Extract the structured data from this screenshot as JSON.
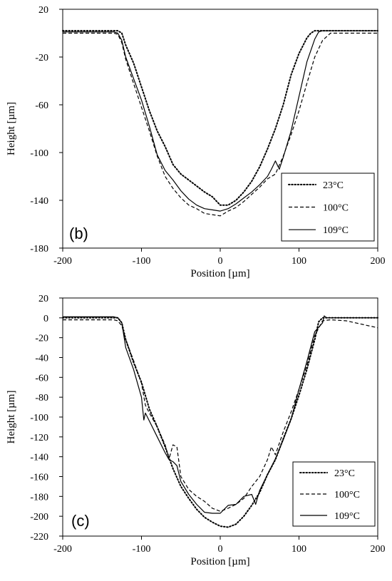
{
  "chart_data": [
    {
      "type": "line",
      "panel_label": "(b)",
      "xlabel": "Position [µm]",
      "ylabel": "Height [µm]",
      "xlim": [
        -200,
        200
      ],
      "ylim": [
        -180,
        20
      ],
      "xticks": [
        -200,
        -100,
        0,
        100,
        200
      ],
      "yticks": [
        20,
        -20,
        -60,
        -100,
        -140,
        -180
      ],
      "grid": false,
      "legend_position": "bottom-right",
      "series": [
        {
          "name": "23°C",
          "style": "dotted",
          "x": [
            -200,
            -135,
            -130,
            -125,
            -120,
            -110,
            -100,
            -90,
            -80,
            -70,
            -60,
            -50,
            -40,
            -30,
            -20,
            -10,
            0,
            10,
            20,
            30,
            40,
            50,
            60,
            70,
            80,
            90,
            100,
            110,
            115,
            120,
            125,
            130,
            140,
            200
          ],
          "y": [
            2,
            2,
            2,
            0,
            -10,
            -25,
            -45,
            -65,
            -82,
            -95,
            -110,
            -118,
            -123,
            -128,
            -133,
            -137,
            -144,
            -144,
            -140,
            -133,
            -124,
            -112,
            -97,
            -80,
            -60,
            -35,
            -17,
            -4,
            0,
            2,
            2,
            2,
            2,
            2
          ]
        },
        {
          "name": "100°C",
          "style": "dashed",
          "x": [
            -200,
            -135,
            -130,
            -125,
            -120,
            -110,
            -100,
            -90,
            -80,
            -70,
            -60,
            -50,
            -40,
            -30,
            -20,
            -10,
            0,
            10,
            20,
            30,
            40,
            50,
            60,
            70,
            80,
            90,
            100,
            110,
            120,
            130,
            140,
            200
          ],
          "y": [
            0,
            0,
            -1,
            -8,
            -22,
            -42,
            -62,
            -82,
            -103,
            -120,
            -130,
            -138,
            -144,
            -147,
            -151,
            -152,
            -153,
            -149,
            -146,
            -141,
            -135,
            -129,
            -122,
            -118,
            -103,
            -85,
            -65,
            -42,
            -20,
            -6,
            0,
            0
          ]
        },
        {
          "name": "109°C",
          "style": "solid",
          "x": [
            -200,
            -135,
            -130,
            -125,
            -120,
            -110,
            -100,
            -90,
            -80,
            -70,
            -60,
            -50,
            -40,
            -30,
            -20,
            -10,
            0,
            10,
            20,
            30,
            40,
            50,
            60,
            65,
            70,
            75,
            80,
            90,
            100,
            110,
            120,
            125,
            130,
            140,
            200
          ],
          "y": [
            1,
            1,
            0,
            -6,
            -20,
            -38,
            -56,
            -78,
            -102,
            -115,
            -123,
            -132,
            -139,
            -144,
            -147,
            -148,
            -149,
            -147,
            -143,
            -138,
            -133,
            -127,
            -120,
            -114,
            -107,
            -114,
            -104,
            -82,
            -53,
            -24,
            -5,
            1,
            2,
            2,
            2
          ]
        }
      ]
    },
    {
      "type": "line",
      "panel_label": "(c)",
      "xlabel": "Position [µm]",
      "ylabel": "Height [µm]",
      "xlim": [
        -200,
        200
      ],
      "ylim": [
        -220,
        20
      ],
      "xticks": [
        -200,
        -100,
        0,
        100,
        200
      ],
      "yticks": [
        20,
        0,
        -20,
        -40,
        -60,
        -80,
        -100,
        -120,
        -140,
        -160,
        -180,
        -200,
        -220
      ],
      "grid": false,
      "legend_position": "bottom-right",
      "series": [
        {
          "name": "23°C",
          "style": "dotted",
          "x": [
            -200,
            -135,
            -130,
            -125,
            -120,
            -110,
            -100,
            -90,
            -80,
            -70,
            -60,
            -50,
            -40,
            -30,
            -20,
            -10,
            0,
            10,
            20,
            30,
            40,
            50,
            60,
            70,
            80,
            90,
            100,
            110,
            120,
            125,
            130,
            200
          ],
          "y": [
            0,
            0,
            0,
            -5,
            -22,
            -45,
            -65,
            -92,
            -110,
            -130,
            -152,
            -170,
            -182,
            -193,
            -201,
            -206,
            -210,
            -211,
            -208,
            -200,
            -189,
            -176,
            -158,
            -143,
            -122,
            -102,
            -78,
            -52,
            -22,
            -4,
            0,
            0
          ]
        },
        {
          "name": "100°C",
          "style": "dashed",
          "x": [
            -200,
            -135,
            -130,
            -125,
            -120,
            -110,
            -100,
            -95,
            -90,
            -80,
            -70,
            -65,
            -60,
            -55,
            -50,
            -40,
            -30,
            -20,
            -10,
            0,
            10,
            20,
            30,
            40,
            50,
            60,
            65,
            70,
            80,
            90,
            100,
            110,
            120,
            130,
            140,
            160,
            200
          ],
          "y": [
            -2,
            -2,
            -3,
            -8,
            -22,
            -43,
            -66,
            -88,
            -96,
            -110,
            -128,
            -142,
            -128,
            -130,
            -160,
            -173,
            -180,
            -185,
            -192,
            -195,
            -192,
            -188,
            -182,
            -170,
            -160,
            -143,
            -130,
            -138,
            -115,
            -95,
            -72,
            -48,
            -18,
            -3,
            -2,
            -3,
            -10
          ]
        },
        {
          "name": "109°C",
          "style": "solid",
          "x": [
            -200,
            -135,
            -130,
            -125,
            -120,
            -110,
            -100,
            -97,
            -95,
            -90,
            -80,
            -70,
            -65,
            -60,
            -55,
            -50,
            -40,
            -30,
            -20,
            -10,
            0,
            5,
            10,
            20,
            30,
            40,
            45,
            50,
            60,
            70,
            80,
            90,
            100,
            110,
            120,
            130,
            132,
            135,
            140,
            200
          ],
          "y": [
            1,
            1,
            0,
            -5,
            -30,
            -52,
            -80,
            -103,
            -96,
            -104,
            -120,
            -136,
            -143,
            -145,
            -149,
            -165,
            -178,
            -188,
            -196,
            -197,
            -197,
            -193,
            -189,
            -188,
            -180,
            -178,
            -188,
            -174,
            -158,
            -142,
            -123,
            -102,
            -72,
            -44,
            -14,
            -5,
            2,
            0,
            0,
            0
          ]
        }
      ]
    }
  ]
}
